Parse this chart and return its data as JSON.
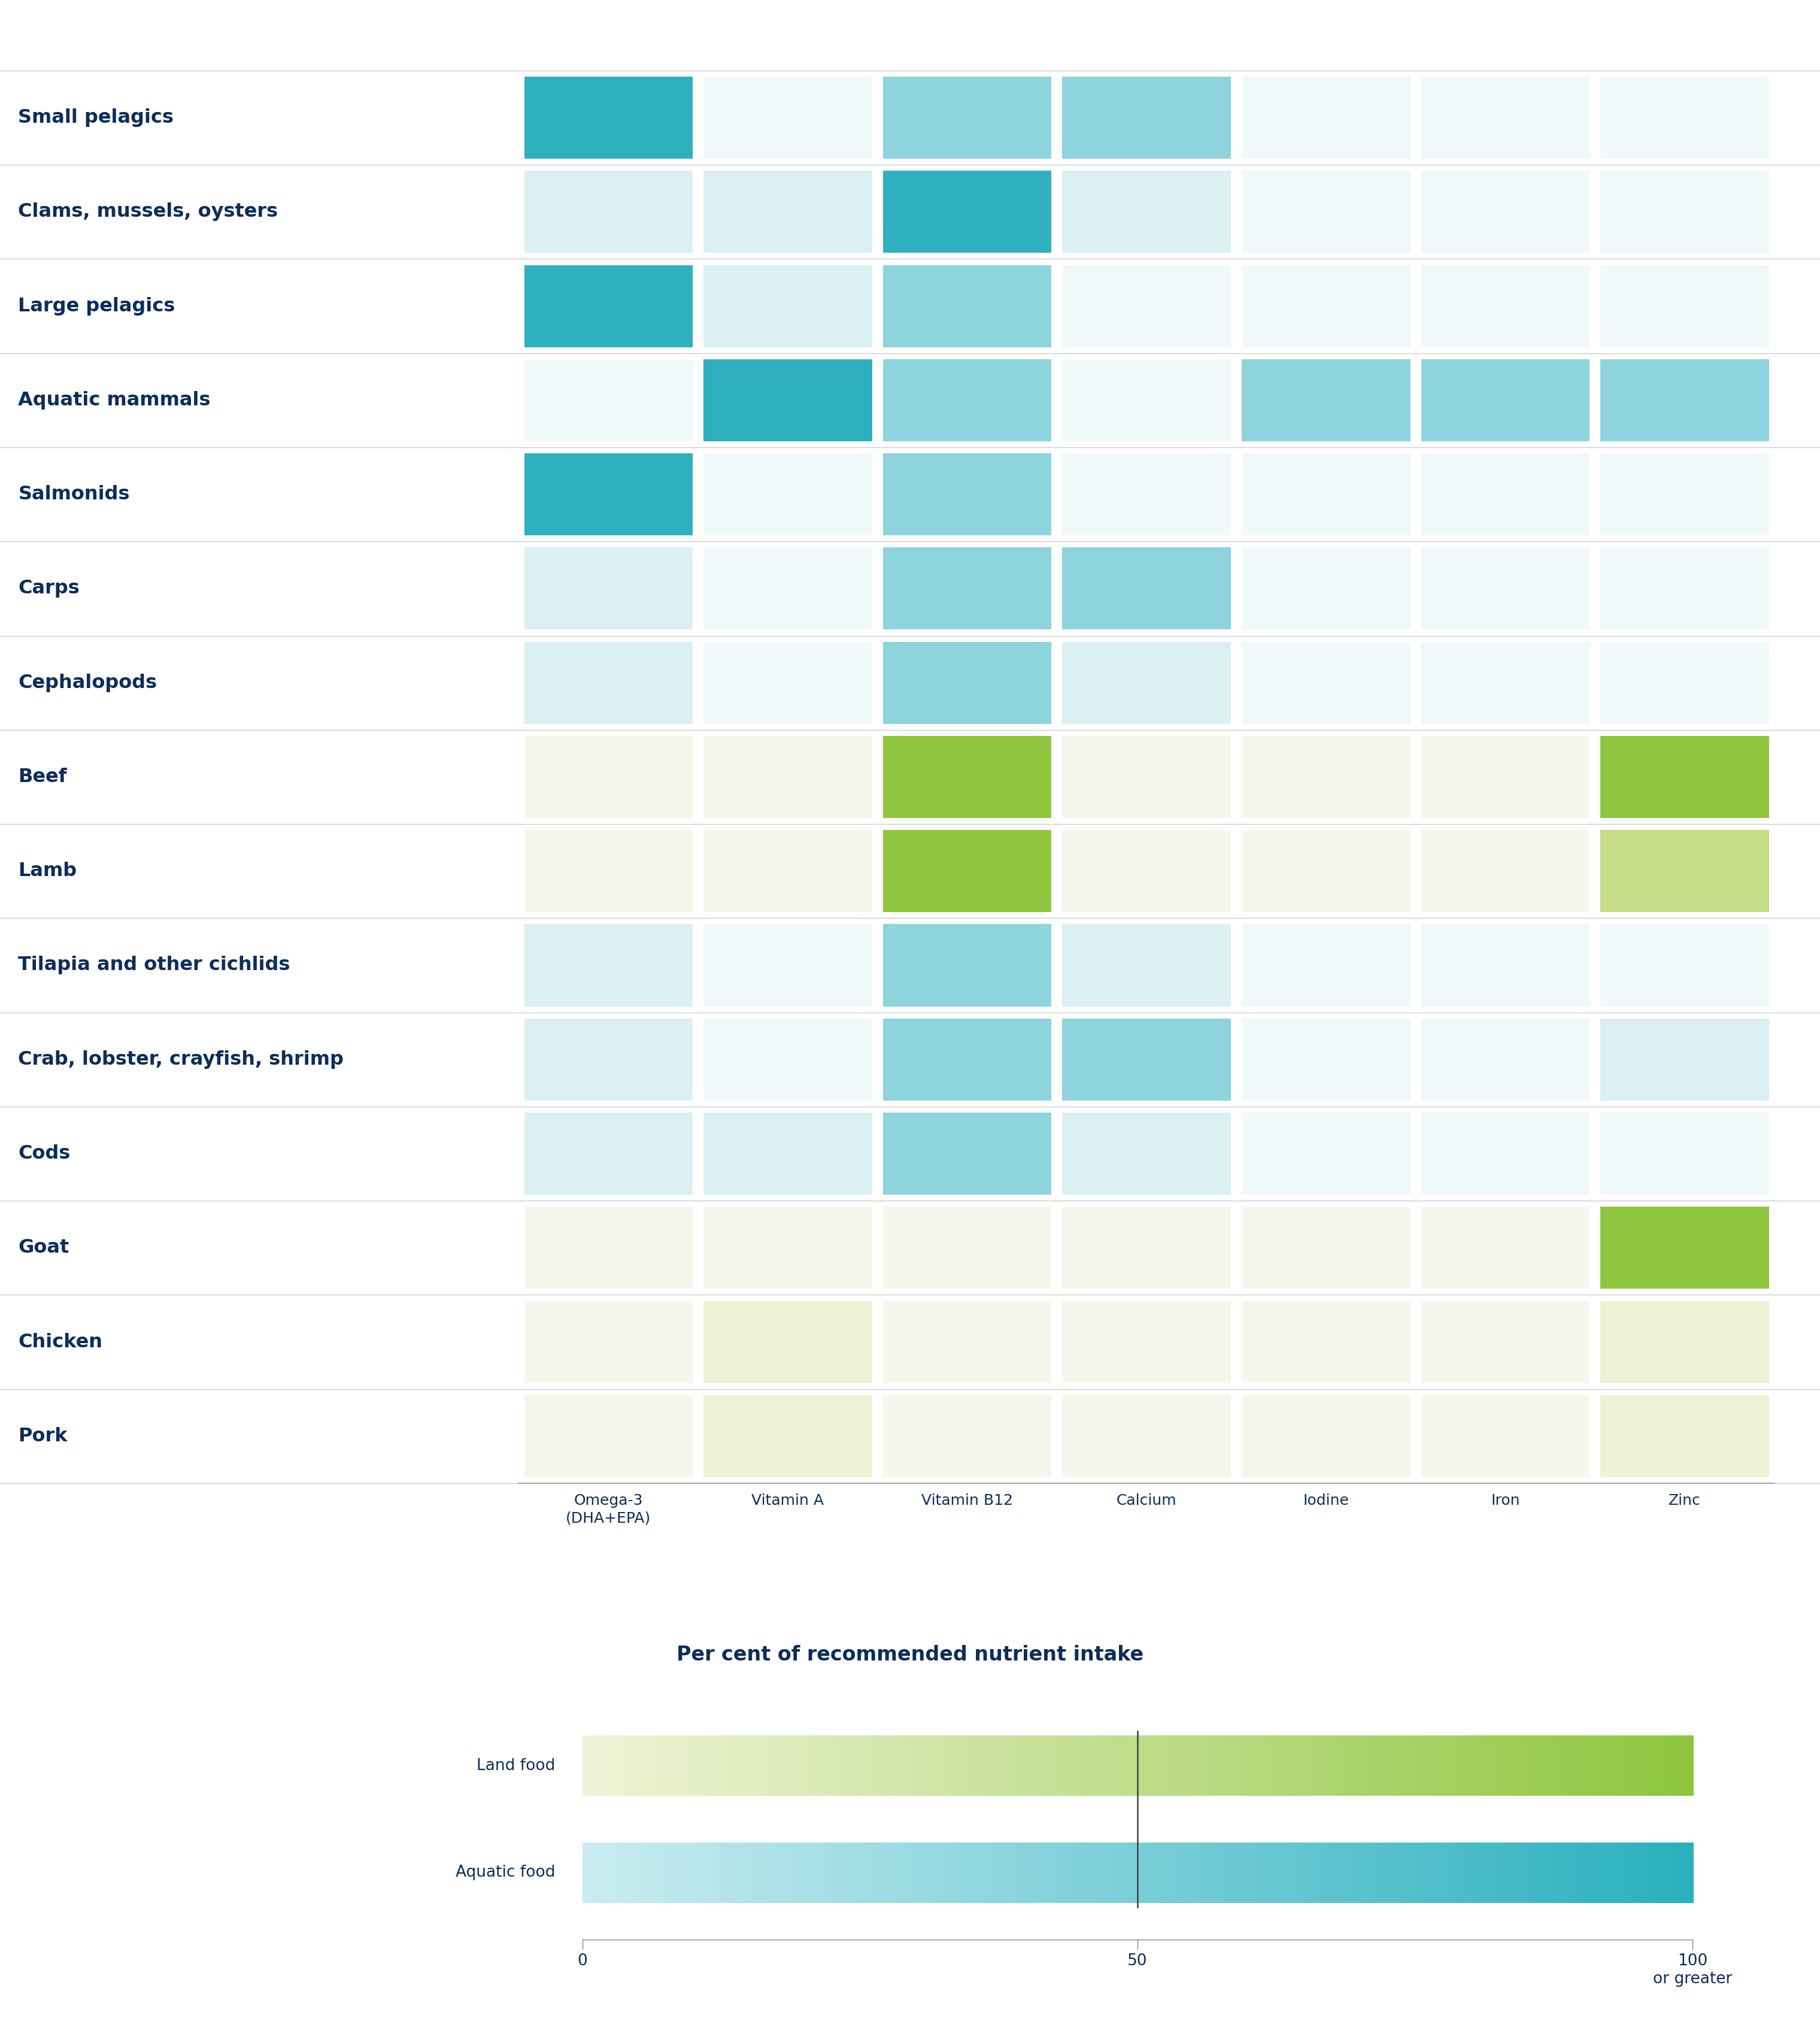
{
  "rows": [
    {
      "name": "Small pelagics",
      "type": "aquatic",
      "values": [
        100,
        0,
        40,
        60,
        0,
        0,
        0
      ]
    },
    {
      "name": "Clams, mussels, oysters",
      "type": "aquatic",
      "values": [
        15,
        25,
        70,
        10,
        0,
        0,
        0
      ]
    },
    {
      "name": "Large pelagics",
      "type": "aquatic",
      "values": [
        80,
        20,
        55,
        0,
        0,
        0,
        0
      ]
    },
    {
      "name": "Aquatic mammals",
      "type": "aquatic",
      "values": [
        0,
        70,
        40,
        0,
        60,
        60,
        40
      ]
    },
    {
      "name": "Salmonids",
      "type": "aquatic",
      "values": [
        80,
        0,
        45,
        0,
        0,
        0,
        0
      ]
    },
    {
      "name": "Carps",
      "type": "aquatic",
      "values": [
        20,
        0,
        60,
        55,
        0,
        0,
        0
      ]
    },
    {
      "name": "Cephalopods",
      "type": "aquatic",
      "values": [
        5,
        0,
        55,
        25,
        0,
        0,
        0
      ]
    },
    {
      "name": "Beef",
      "type": "land",
      "values": [
        0,
        0,
        70,
        0,
        0,
        0,
        70
      ]
    },
    {
      "name": "Lamb",
      "type": "land",
      "values": [
        0,
        0,
        70,
        0,
        0,
        0,
        55
      ]
    },
    {
      "name": "Tilapia and other cichlids",
      "type": "aquatic",
      "values": [
        10,
        0,
        55,
        5,
        0,
        0,
        0
      ]
    },
    {
      "name": "Crab, lobster, crayfish, shrimp",
      "type": "aquatic",
      "values": [
        5,
        0,
        55,
        55,
        0,
        0,
        20
      ]
    },
    {
      "name": "Cods",
      "type": "aquatic",
      "values": [
        10,
        20,
        40,
        20,
        0,
        0,
        0
      ]
    },
    {
      "name": "Goat",
      "type": "land",
      "values": [
        0,
        0,
        0,
        0,
        0,
        0,
        100
      ]
    },
    {
      "name": "Chicken",
      "type": "land",
      "values": [
        0,
        20,
        0,
        0,
        0,
        0,
        15
      ]
    },
    {
      "name": "Pork",
      "type": "land",
      "values": [
        0,
        10,
        0,
        0,
        0,
        0,
        15
      ]
    }
  ],
  "nutrients": [
    "Omega-3\n(DHA+EPA)",
    "Vitamin A",
    "Vitamin B12",
    "Calcium",
    "Iodine",
    "Iron",
    "Zinc"
  ],
  "aquatic_palette": [
    "#daf0f3",
    "#8dd4dc",
    "#2fb0be"
  ],
  "land_palette": [
    "#eef3d5",
    "#c6dc87",
    "#8ec63f"
  ],
  "aquatic_zero_bg": "#f0f8fa",
  "land_zero_bg": "#f5f7ec",
  "title": "Per cent of recommended nutrient intake",
  "legend_land_low": "#eef3d5",
  "legend_land_high": "#8ec63f",
  "legend_aquatic_low": "#c8ecf0",
  "legend_aquatic_high": "#2ab0be",
  "bg_color": "#ffffff",
  "label_color": "#0d2d5a",
  "divider_color": "#c8c8c8"
}
